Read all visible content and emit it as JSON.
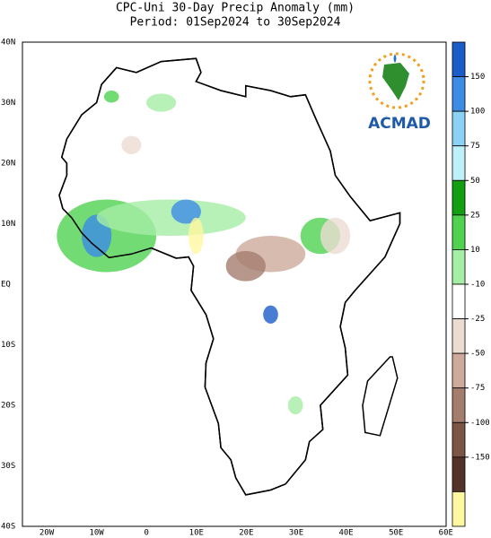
{
  "title": [
    "CPC-Uni 30-Day Precip Anomaly (mm)",
    "Period: 01Sep2024 to 30Sep2024"
  ],
  "map": {
    "lat_labels": [
      "40N",
      "30N",
      "20N",
      "10N",
      "EQ",
      "10S",
      "20S",
      "30S",
      "40S"
    ],
    "lon_labels": [
      "20W",
      "10W",
      "0",
      "10E",
      "20E",
      "30E",
      "40E",
      "50E",
      "60E"
    ]
  },
  "colorbar": {
    "levels": [
      150,
      100,
      75,
      50,
      25,
      10,
      -10,
      -25,
      -50,
      -75,
      -100,
      -150
    ],
    "colors": [
      "#1a5cc8",
      "#3c8ce6",
      "#8cd2f5",
      "#bef0fa",
      "#12a012",
      "#50d250",
      "#a5eea5",
      "#ffffff",
      "#ebdcd2",
      "#cdaa9b",
      "#a57d6e",
      "#7d5546",
      "#553228",
      "#fff8a0"
    ]
  },
  "logo": "ACMAD"
}
